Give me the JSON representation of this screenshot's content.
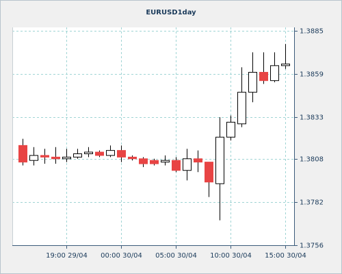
{
  "chart_data": {
    "type": "candlestick",
    "title": "EURUSD1day",
    "categories": [
      null,
      null,
      null,
      null,
      "19:00 29/04",
      null,
      null,
      null,
      null,
      "00:00 30/04",
      null,
      null,
      null,
      null,
      "05:00 30/04",
      null,
      null,
      null,
      null,
      "10:00 30/04",
      null,
      null,
      null,
      null,
      "15:00 30/04"
    ],
    "open": [
      1.3816,
      1.3807,
      1.381,
      1.3809,
      1.3808,
      1.3809,
      1.3811,
      1.3812,
      1.381,
      1.3813,
      1.3809,
      1.3808,
      1.3807,
      1.3806,
      1.3807,
      1.3801,
      1.3808,
      1.3806,
      1.3793,
      1.3821,
      1.3829,
      1.3848,
      1.386,
      1.3855,
      1.3864
    ],
    "high": [
      1.382,
      1.3815,
      1.3814,
      1.3815,
      1.3814,
      1.3814,
      1.3815,
      1.3813,
      1.3816,
      1.3816,
      1.381,
      1.3809,
      1.3808,
      1.381,
      1.3809,
      1.3814,
      1.3813,
      1.3806,
      1.3833,
      1.3834,
      1.3863,
      1.3872,
      1.3872,
      1.3872,
      1.3877
    ],
    "low": [
      1.3804,
      1.3804,
      1.3805,
      1.3805,
      1.3806,
      1.3808,
      1.3809,
      1.3809,
      1.3809,
      1.3806,
      1.3807,
      1.3803,
      1.3804,
      1.3804,
      1.38,
      1.3795,
      1.38,
      1.3785,
      1.3771,
      1.3819,
      1.3827,
      1.3842,
      1.3853,
      1.3854,
      1.3862
    ],
    "close": [
      1.3806,
      1.381,
      1.3809,
      1.3808,
      1.3809,
      1.3811,
      1.3812,
      1.381,
      1.3813,
      1.3809,
      1.3808,
      1.3805,
      1.3805,
      1.3807,
      1.3801,
      1.3808,
      1.3806,
      1.3794,
      1.3821,
      1.383,
      1.3848,
      1.386,
      1.3855,
      1.3864,
      1.3865
    ],
    "up_color": "#ffffff",
    "down_color": "#e84444",
    "ylim": [
      1.3756,
      1.3887
    ],
    "yticks": [
      1.3756,
      1.3782,
      1.3808,
      1.3833,
      1.3859,
      1.3885
    ],
    "grid": true
  }
}
